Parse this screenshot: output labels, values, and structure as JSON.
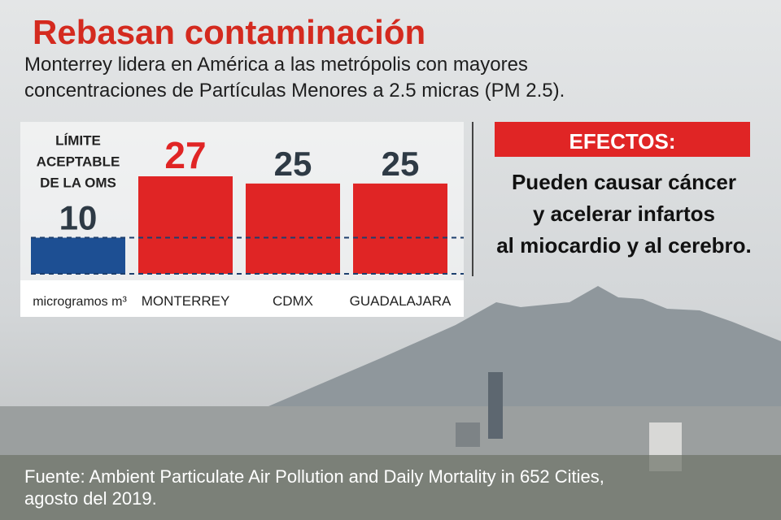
{
  "chart_data": {
    "type": "bar",
    "title": "Rebasan contaminación",
    "subtitle": [
      "Monterrey lidera en América a las metrópolis con mayores",
      "concentraciones de Partículas Menores a 2.5 micras (PM 2.5)."
    ],
    "annotation": [
      "LÍMITE",
      "ACEPTABLE",
      "DE LA OMS"
    ],
    "unit": "microgramos m³",
    "categories": [
      null,
      "MONTERREY",
      "CDMX",
      "GUADALAJARA"
    ],
    "values": [
      10,
      27,
      25,
      25
    ],
    "colors": [
      "#1d4f93",
      "#e02525",
      "#e02525",
      "#e02525"
    ],
    "value_label_colors": [
      "#2e3a45",
      "#e02525",
      "#2e3a45",
      "#2e3a45"
    ],
    "ylim": [
      0,
      27
    ],
    "effects": {
      "title": "EFECTOS:",
      "lines": [
        "Pueden causar cáncer",
        "y acelerar infartos",
        "al miocardio y al cerebro."
      ]
    },
    "source": [
      "Fuente: Ambient Particulate Air Pollution and Daily Mortality in 652 Cities,",
      "agosto del 2019."
    ]
  }
}
